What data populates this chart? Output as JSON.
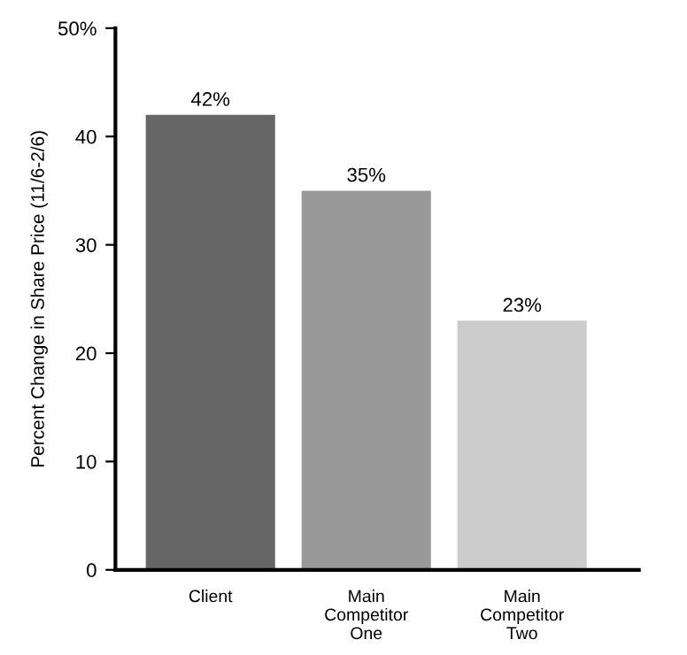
{
  "chart_data": {
    "type": "bar",
    "ylabel": "Percent Change in Share Price (11/6-2/6)",
    "categories": [
      "Client",
      "Main\nCompetitor\nOne",
      "Main\nCompetitor\nTwo"
    ],
    "values": [
      42,
      35,
      23
    ],
    "value_labels": [
      "42%",
      "35%",
      "23%"
    ],
    "colors": [
      "#666666",
      "#999999",
      "#cccccc"
    ],
    "ylim": [
      0,
      50
    ],
    "yticks": [
      0,
      10,
      20,
      30,
      40,
      {
        "value": 50,
        "label": "50%"
      }
    ],
    "grid": false,
    "legend": false
  }
}
